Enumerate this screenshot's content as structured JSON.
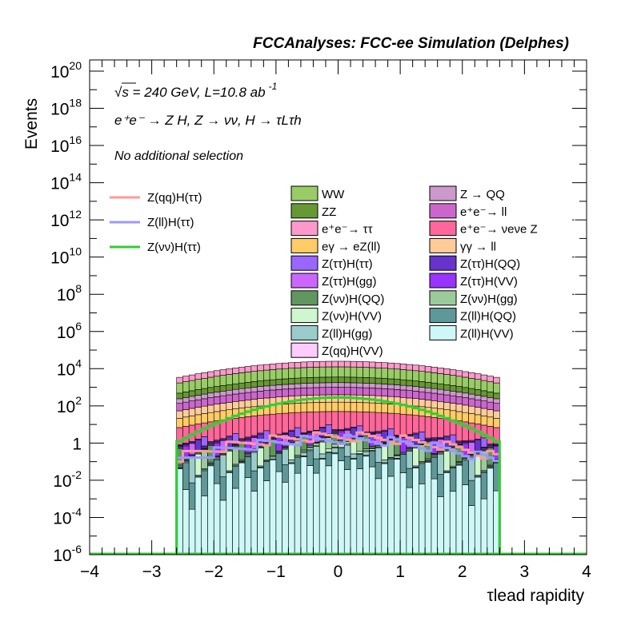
{
  "chart_data": {
    "type": "histogram-stack",
    "title": "FCCAnalyses: FCC-ee Simulation (Delphes)",
    "info": {
      "energy": "√s = 240 GeV, L=10.8 ab",
      "lumi_exp": "-1",
      "process": "e⁺e⁻ → Z H, Z → νν, H → τLτh",
      "selection": "No additional selection"
    },
    "xlabel": "τlead rapidity",
    "ylabel": "Events",
    "xlim": [
      -4,
      4
    ],
    "ylim_log10": [
      -6,
      20.6
    ],
    "log_y": true,
    "x_ticks": [
      "−4",
      "−3",
      "−2",
      "−1",
      "0",
      "1",
      "2",
      "3",
      "4"
    ],
    "y_ticks": [
      {
        "base": "10",
        "exp": "20",
        "value": 20
      },
      {
        "base": "10",
        "exp": "18",
        "value": 18
      },
      {
        "base": "10",
        "exp": "16",
        "value": 16
      },
      {
        "base": "10",
        "exp": "14",
        "value": 14
      },
      {
        "base": "10",
        "exp": "12",
        "value": 12
      },
      {
        "base": "10",
        "exp": "10",
        "value": 10
      },
      {
        "base": "10",
        "exp": "8",
        "value": 8
      },
      {
        "base": "10",
        "exp": "6",
        "value": 6
      },
      {
        "base": "10",
        "exp": "4",
        "value": 4
      },
      {
        "base": "10",
        "exp": "2",
        "value": 2
      },
      {
        "base": "1",
        "exp": "",
        "value": 0
      },
      {
        "base": "10",
        "exp": "-2",
        "value": -2
      },
      {
        "base": "10",
        "exp": "-4",
        "value": -4
      },
      {
        "base": "10",
        "exp": "-6",
        "value": -6
      }
    ],
    "stack_profile": {
      "x_min": -2.6,
      "x_max": 2.6,
      "n_bins": 52,
      "peak_log10": 4.4,
      "edge_log10": 3.5
    },
    "stack_layers": [
      {
        "name": "Z(ll)H(VV)",
        "color": "#cef8f8",
        "log10_peak": -0.2
      },
      {
        "name": "Z(ll)H(QQ)",
        "color": "#5f9898",
        "log10_peak": 0.1
      },
      {
        "name": "Z(ll)H(gg)",
        "color": "#9bcccc",
        "log10_peak": 0.3
      },
      {
        "name": "Z(νν)H(VV)",
        "color": "#cdf7cd",
        "log10_peak": 0.5
      },
      {
        "name": "Z(νν)H(gg)",
        "color": "#9bcb9b",
        "log10_peak": 0.7
      },
      {
        "name": "Z(νν)H(QQ)",
        "color": "#5f975f",
        "log10_peak": 0.9
      },
      {
        "name": "Z(ττ)H(VV)",
        "color": "#9933ff",
        "log10_peak": 1.0
      },
      {
        "name": "Z(ττ)H(gg)",
        "color": "#cc66ff",
        "log10_peak": 1.1
      },
      {
        "name": "Z(ττ)H(QQ)",
        "color": "#6633cc",
        "log10_peak": 1.25
      },
      {
        "name": "Z(ττ)H(ττ)",
        "color": "#9966ff",
        "log10_peak": 1.4
      },
      {
        "name": "e⁺e⁻→ νeνe Z",
        "color": "#ff6699",
        "log10_peak": 1.7
      },
      {
        "name": "eγ → eZ(ll)",
        "color": "#ffcc66",
        "log10_peak": 2.2
      },
      {
        "name": "γγ → ll",
        "color": "#ffcc99",
        "log10_peak": 2.6
      },
      {
        "name": "e⁺e⁻→ ll",
        "color": "#cc66cc",
        "log10_peak": 3.0
      },
      {
        "name": "Z → QQ",
        "color": "#cc99cc",
        "log10_peak": 3.25
      },
      {
        "name": "ZZ",
        "color": "#669933",
        "log10_peak": 3.55
      },
      {
        "name": "WW",
        "color": "#99cc66",
        "log10_peak": 4.1
      },
      {
        "name": "e⁺e⁻→ ττ",
        "color": "#ff99cc",
        "log10_peak": 4.4
      }
    ],
    "legend_stack": [
      {
        "label": "WW",
        "color": "#99cc66"
      },
      {
        "label": "Z → QQ",
        "color": "#cc99cc"
      },
      {
        "label": "ZZ",
        "color": "#669933"
      },
      {
        "label": "e⁺e⁻→ ll",
        "color": "#cc66cc"
      },
      {
        "label": "e⁺e⁻→ ττ",
        "color": "#ff99cc"
      },
      {
        "label": "e⁺e⁻→ νeνe Z",
        "color": "#ff6699"
      },
      {
        "label": "eγ → eZ(ll)",
        "color": "#ffcc66"
      },
      {
        "label": "γγ → ll",
        "color": "#ffcc99"
      },
      {
        "label": "Z(ττ)H(ττ)",
        "color": "#9966ff"
      },
      {
        "label": "Z(ττ)H(QQ)",
        "color": "#6633cc"
      },
      {
        "label": "Z(ττ)H(gg)",
        "color": "#cc66ff"
      },
      {
        "label": "Z(ττ)H(VV)",
        "color": "#9933ff"
      },
      {
        "label": "Z(νν)H(QQ)",
        "color": "#5f975f"
      },
      {
        "label": "Z(νν)H(gg)",
        "color": "#9bcb9b"
      },
      {
        "label": "Z(νν)H(VV)",
        "color": "#cdf7cd"
      },
      {
        "label": "Z(ll)H(QQ)",
        "color": "#5f9898"
      },
      {
        "label": "Z(ll)H(gg)",
        "color": "#9bcccc"
      },
      {
        "label": "Z(ll)H(VV)",
        "color": "#cef8f8"
      },
      {
        "label": "Z(qq)H(VV)",
        "color": "#ffccff"
      }
    ],
    "signal_series": [
      {
        "name": "Z(qq)H(ττ)",
        "color": "#ff9999",
        "x_min": -2.6,
        "x_max": 2.6,
        "log10_peak": 0.35,
        "log10_edge": -0.8
      },
      {
        "name": "Z(ll)H(ττ)",
        "color": "#9999ff",
        "x_min": -2.6,
        "x_max": 2.6,
        "log10_peak": 0.2,
        "log10_edge": -1.0
      },
      {
        "name": "Z(νν)H(ττ)",
        "color": "#33cc33",
        "x_min": -2.6,
        "x_max": 2.6,
        "log10_peak": 2.45,
        "log10_edge": 0.0
      }
    ]
  }
}
